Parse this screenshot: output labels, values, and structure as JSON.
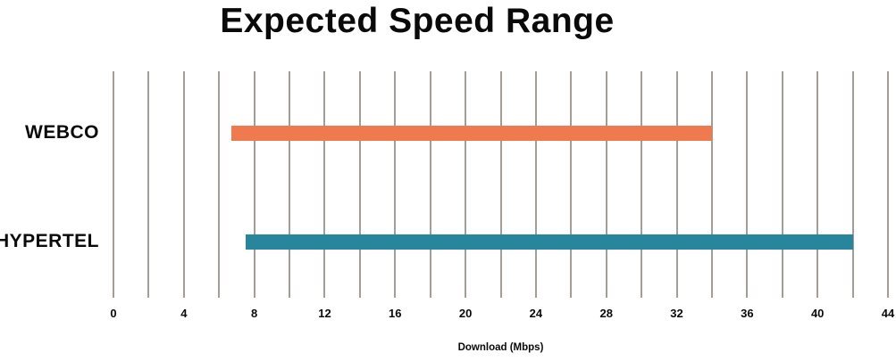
{
  "chart_data": {
    "type": "bar",
    "variant": "horizontal-range",
    "title": "Expected Speed Range",
    "xlabel": "Download (Mbps)",
    "categories": [
      "WEBCO",
      "HYPERTEL"
    ],
    "series": [
      {
        "name": "WEBCO",
        "range_mbps": [
          6.7,
          34
        ],
        "color": "#ef7a4f"
      },
      {
        "name": "HYPERTEL",
        "range_mbps": [
          7.5,
          42
        ],
        "color": "#28869c"
      }
    ],
    "xlim": [
      0,
      44
    ],
    "x_tick_labels": [
      "0",
      "4",
      "8",
      "12",
      "16",
      "20",
      "24",
      "28",
      "32",
      "36",
      "40",
      "44"
    ],
    "x_tick_step": 4,
    "gridline_step": 2,
    "grid": true,
    "legend": false,
    "gridline_color": "#a29d97",
    "text_color": "#0a0a0a",
    "background": "#ffffff"
  }
}
